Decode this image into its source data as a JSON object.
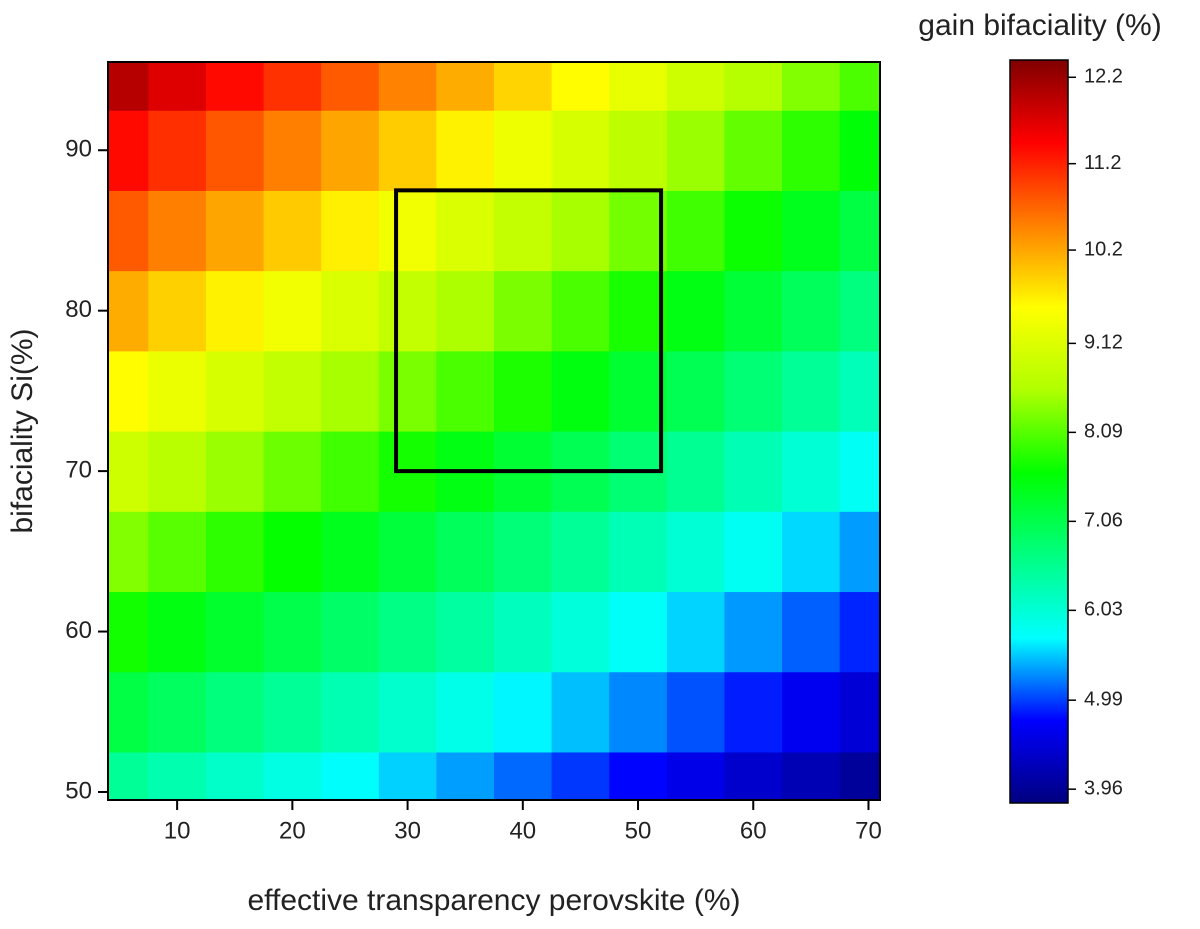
{
  "chart_data": {
    "type": "heatmap",
    "xlabel": "effective transparency perovskite (%)",
    "ylabel": "bifaciality Si(%)",
    "colorbar_label": "gain bifaciality (%)",
    "x": [
      5,
      10,
      15,
      20,
      25,
      30,
      35,
      40,
      45,
      50,
      55,
      60,
      65,
      70
    ],
    "y": [
      50,
      55,
      60,
      65,
      70,
      75,
      80,
      85,
      90,
      95
    ],
    "z": [
      [
        6.5,
        6.31,
        6.12,
        5.92,
        5.73,
        5.54,
        5.35,
        5.15,
        4.96,
        4.77,
        4.58,
        4.38,
        4.19,
        4.0
      ],
      [
        7.11,
        6.91,
        6.7,
        6.5,
        6.29,
        6.09,
        5.88,
        5.68,
        5.47,
        5.27,
        5.06,
        4.86,
        4.65,
        4.45
      ],
      [
        7.72,
        7.5,
        7.29,
        7.07,
        6.85,
        6.63,
        6.42,
        6.2,
        5.98,
        5.76,
        5.55,
        5.33,
        5.11,
        4.89
      ],
      [
        8.33,
        8.1,
        7.87,
        7.64,
        7.41,
        7.18,
        6.95,
        6.72,
        6.49,
        6.26,
        6.03,
        5.8,
        5.57,
        5.34
      ],
      [
        8.94,
        8.7,
        8.46,
        8.21,
        7.97,
        7.73,
        7.49,
        7.24,
        7.0,
        6.76,
        6.52,
        6.27,
        6.03,
        5.79
      ],
      [
        9.55,
        9.3,
        9.04,
        8.79,
        8.53,
        8.28,
        8.02,
        7.77,
        7.51,
        7.26,
        7.0,
        6.75,
        6.49,
        6.24
      ],
      [
        10.16,
        9.89,
        9.63,
        9.36,
        9.09,
        8.82,
        8.56,
        8.29,
        8.02,
        7.75,
        7.49,
        7.22,
        6.95,
        6.68
      ],
      [
        10.77,
        10.49,
        10.21,
        9.93,
        9.65,
        9.37,
        9.09,
        8.81,
        8.53,
        8.25,
        7.97,
        7.69,
        7.41,
        7.13
      ],
      [
        11.38,
        11.09,
        10.8,
        10.5,
        10.21,
        9.92,
        9.63,
        9.33,
        9.04,
        8.75,
        8.46,
        8.16,
        7.87,
        7.58
      ],
      [
        11.99,
        11.69,
        11.38,
        11.08,
        10.77,
        10.47,
        10.16,
        9.86,
        9.55,
        9.25,
        8.94,
        8.64,
        8.33,
        8.03
      ]
    ],
    "xlim": [
      4,
      71
    ],
    "ylim": [
      49.5,
      95.5
    ],
    "xticks": [
      10,
      20,
      30,
      40,
      50,
      60,
      70
    ],
    "yticks": [
      50,
      60,
      70,
      80,
      90
    ],
    "clim": [
      3.8,
      12.4
    ],
    "cticks": [
      3.96,
      4.99,
      6.03,
      7.06,
      8.09,
      9.12,
      10.2,
      11.2,
      12.2
    ],
    "colormap": [
      "#000080",
      "#0000ff",
      "#00ffff",
      "#00ff80",
      "#00ff00",
      "#b0ff00",
      "#ffff00",
      "#ff8000",
      "#ff0000",
      "#800000"
    ],
    "highlight_box": {
      "x": [
        29,
        52
      ],
      "y": [
        70,
        87.5
      ]
    }
  }
}
